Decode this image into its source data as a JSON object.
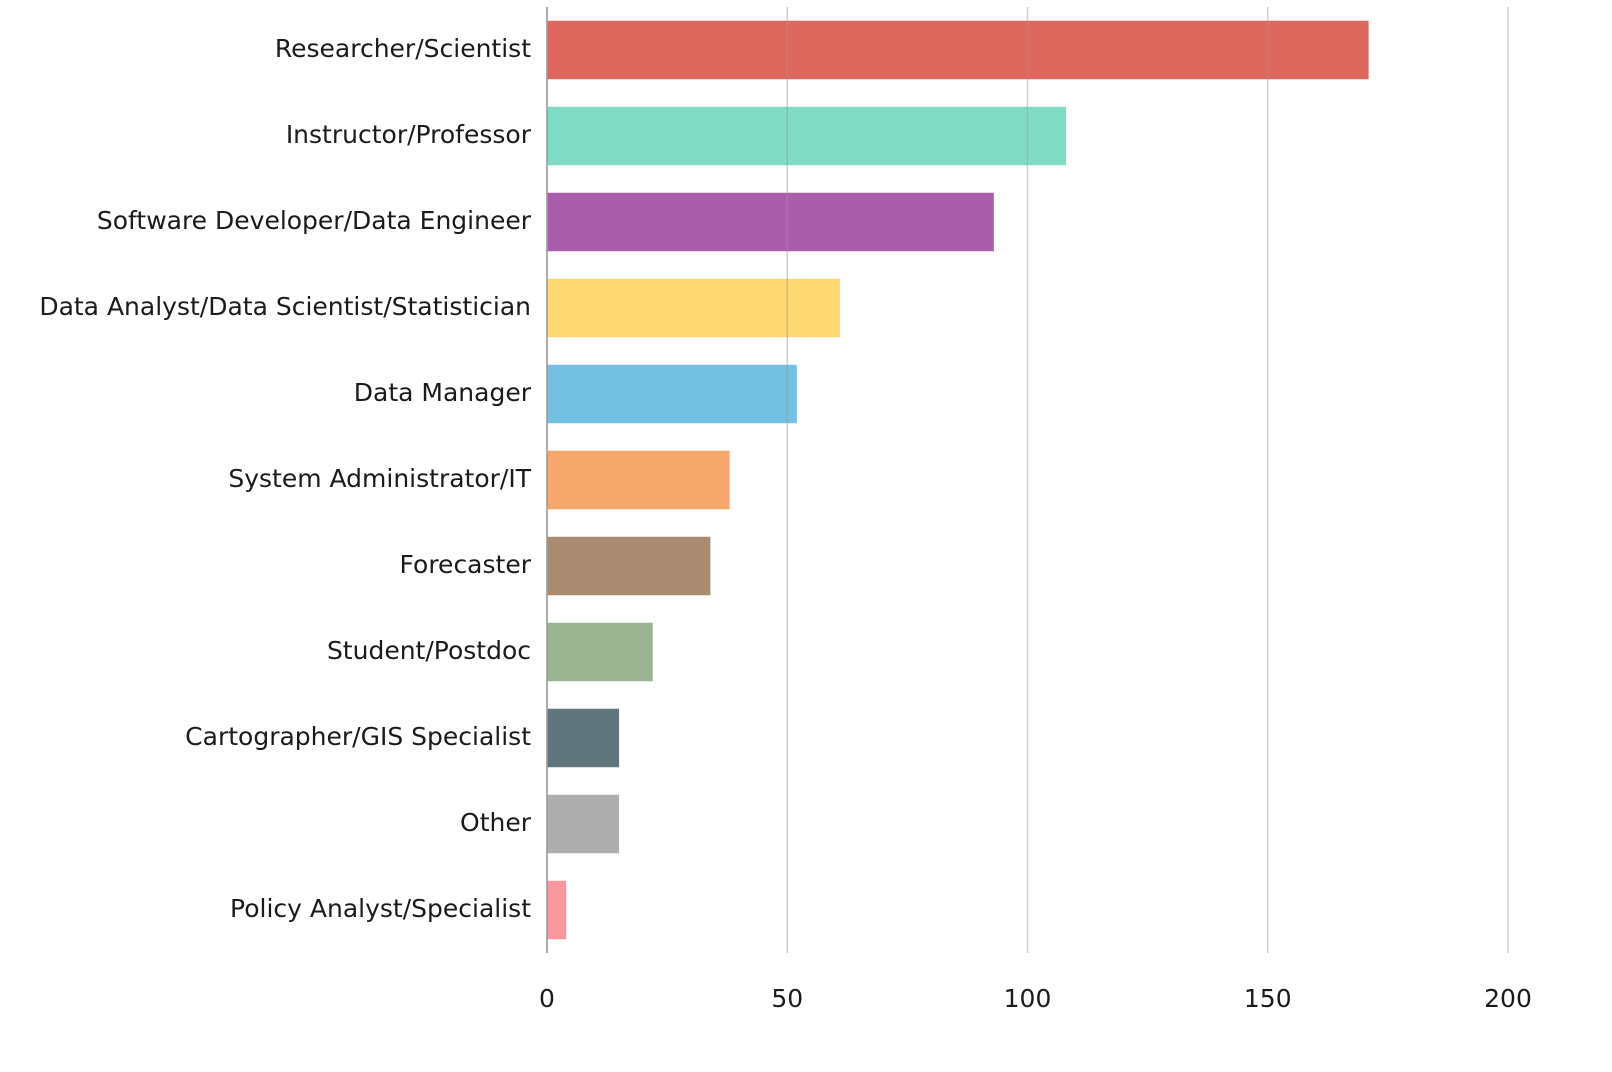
{
  "chart_data": {
    "type": "bar",
    "orientation": "horizontal",
    "categories": [
      "Researcher/Scientist",
      "Instructor/Professor",
      "Software Developer/Data Engineer",
      "Data Analyst/Data Scientist/Statistician",
      "Data Manager",
      "System Administrator/IT",
      "Forecaster",
      "Student/Postdoc",
      "Cartographer/GIS Specialist",
      "Other",
      "Policy Analyst/Specialist"
    ],
    "values": [
      171,
      108,
      93,
      61,
      52,
      38,
      34,
      22,
      15,
      15,
      4
    ],
    "colors": [
      "#dc5f55",
      "#79d9c1",
      "#a554a5",
      "#fed66a",
      "#6bbde2",
      "#f5a263",
      "#a38568",
      "#96b08c",
      "#596e75",
      "#a9a9a9",
      "#f8939a"
    ],
    "xlim": [
      0,
      200
    ],
    "xticks": [
      0,
      50,
      100,
      150,
      200
    ],
    "grid": true
  }
}
